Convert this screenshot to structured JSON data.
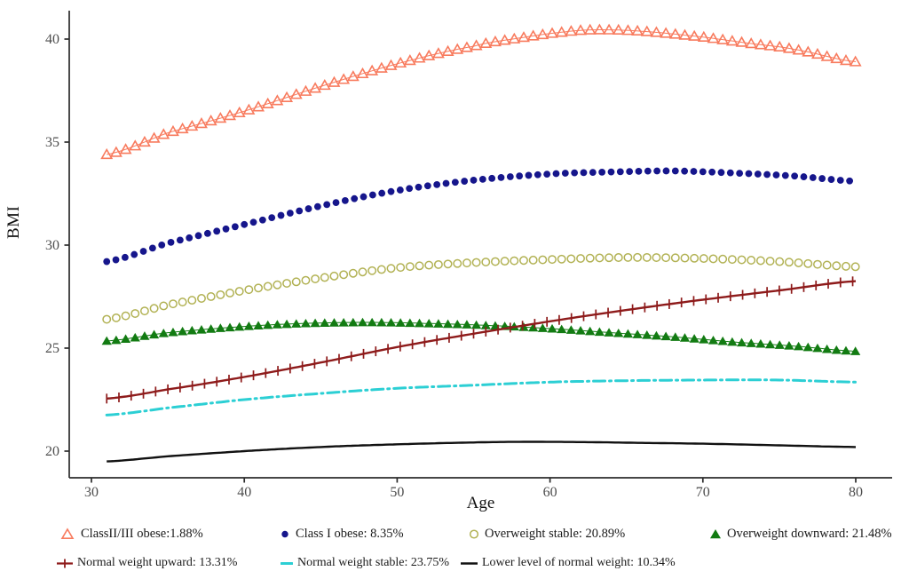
{
  "chart_data": {
    "type": "line",
    "title": "",
    "xlabel": "Age",
    "ylabel": "BMI",
    "x_ticks": [
      30,
      40,
      50,
      60,
      70,
      80
    ],
    "y_ticks": [
      20,
      25,
      30,
      35,
      40
    ],
    "xlim": [
      28.5,
      82.4
    ],
    "ylim": [
      18.7,
      41.4
    ],
    "grid": false,
    "legend_position": "bottom",
    "axis_color": "#2b2b2b",
    "tick_label_color": "#4d4d4d",
    "series": [
      {
        "name": "ClassII/III obese:1.88%",
        "color": "#F87B5E",
        "marker": "triangle-open",
        "line": "thin",
        "marker_step": 0.62,
        "points": [
          [
            31,
            34.4
          ],
          [
            35,
            35.45
          ],
          [
            40,
            36.5
          ],
          [
            45,
            37.7
          ],
          [
            50,
            38.8
          ],
          [
            55,
            39.65
          ],
          [
            58,
            40.05
          ],
          [
            61,
            40.35
          ],
          [
            63,
            40.45
          ],
          [
            66,
            40.38
          ],
          [
            70,
            40.1
          ],
          [
            73,
            39.8
          ],
          [
            76,
            39.5
          ],
          [
            80,
            38.9
          ]
        ]
      },
      {
        "name": "Class I obese: 8.35%",
        "color": "#16168C",
        "marker": "circle-filled",
        "line": "none",
        "marker_step": 0.6,
        "points": [
          [
            31,
            29.2
          ],
          [
            35,
            30.1
          ],
          [
            40,
            31.0
          ],
          [
            45,
            31.9
          ],
          [
            50,
            32.65
          ],
          [
            55,
            33.15
          ],
          [
            60,
            33.45
          ],
          [
            64,
            33.55
          ],
          [
            68,
            33.6
          ],
          [
            72,
            33.5
          ],
          [
            76,
            33.35
          ],
          [
            80,
            33.1
          ]
        ]
      },
      {
        "name": "Overweight stable: 20.89%",
        "color": "#B2B254",
        "marker": "circle-open",
        "line": "none",
        "marker_step": 0.62,
        "points": [
          [
            31,
            26.4
          ],
          [
            35,
            27.1
          ],
          [
            40,
            27.8
          ],
          [
            45,
            28.4
          ],
          [
            50,
            28.9
          ],
          [
            55,
            29.15
          ],
          [
            60,
            29.3
          ],
          [
            65,
            29.4
          ],
          [
            70,
            29.35
          ],
          [
            75,
            29.2
          ],
          [
            80,
            28.95
          ]
        ]
      },
      {
        "name": "Overweight downward: 21.48%",
        "color": "#127B12",
        "marker": "triangle-filled",
        "line": "thin",
        "marker_step": 0.62,
        "points": [
          [
            31,
            25.35
          ],
          [
            35,
            25.75
          ],
          [
            40,
            26.05
          ],
          [
            44,
            26.2
          ],
          [
            48,
            26.25
          ],
          [
            52,
            26.2
          ],
          [
            56,
            26.1
          ],
          [
            60,
            25.95
          ],
          [
            64,
            25.75
          ],
          [
            68,
            25.55
          ],
          [
            72,
            25.3
          ],
          [
            76,
            25.1
          ],
          [
            80,
            24.85
          ]
        ]
      },
      {
        "name": "Normal weight upward: 13.31%",
        "color": "#8E1B1B",
        "marker": "plus",
        "line": "solid",
        "marker_step": 0.8,
        "points": [
          [
            31,
            22.55
          ],
          [
            35,
            23.0
          ],
          [
            40,
            23.6
          ],
          [
            45,
            24.3
          ],
          [
            50,
            25.05
          ],
          [
            55,
            25.7
          ],
          [
            60,
            26.3
          ],
          [
            65,
            26.85
          ],
          [
            70,
            27.35
          ],
          [
            75,
            27.8
          ],
          [
            80,
            28.25
          ]
        ]
      },
      {
        "name": "Normal weight stable: 23.75%",
        "color": "#2CCFD4",
        "marker": "none",
        "line": "dashed",
        "marker_step": 1,
        "points": [
          [
            31,
            21.75
          ],
          [
            35,
            22.1
          ],
          [
            40,
            22.5
          ],
          [
            45,
            22.8
          ],
          [
            50,
            23.05
          ],
          [
            55,
            23.2
          ],
          [
            60,
            23.35
          ],
          [
            65,
            23.42
          ],
          [
            70,
            23.45
          ],
          [
            75,
            23.45
          ],
          [
            80,
            23.35
          ]
        ]
      },
      {
        "name": "Lower level of normal weight: 10.34%",
        "color": "#111111",
        "marker": "none",
        "line": "solid",
        "marker_step": 1,
        "points": [
          [
            31,
            19.5
          ],
          [
            35,
            19.75
          ],
          [
            40,
            20.0
          ],
          [
            45,
            20.2
          ],
          [
            50,
            20.33
          ],
          [
            55,
            20.42
          ],
          [
            58,
            20.45
          ],
          [
            62,
            20.44
          ],
          [
            66,
            20.4
          ],
          [
            70,
            20.36
          ],
          [
            75,
            20.28
          ],
          [
            80,
            20.2
          ]
        ]
      }
    ],
    "legend_rows": [
      [
        0,
        1,
        2,
        3
      ],
      [
        4,
        5,
        6
      ]
    ]
  }
}
